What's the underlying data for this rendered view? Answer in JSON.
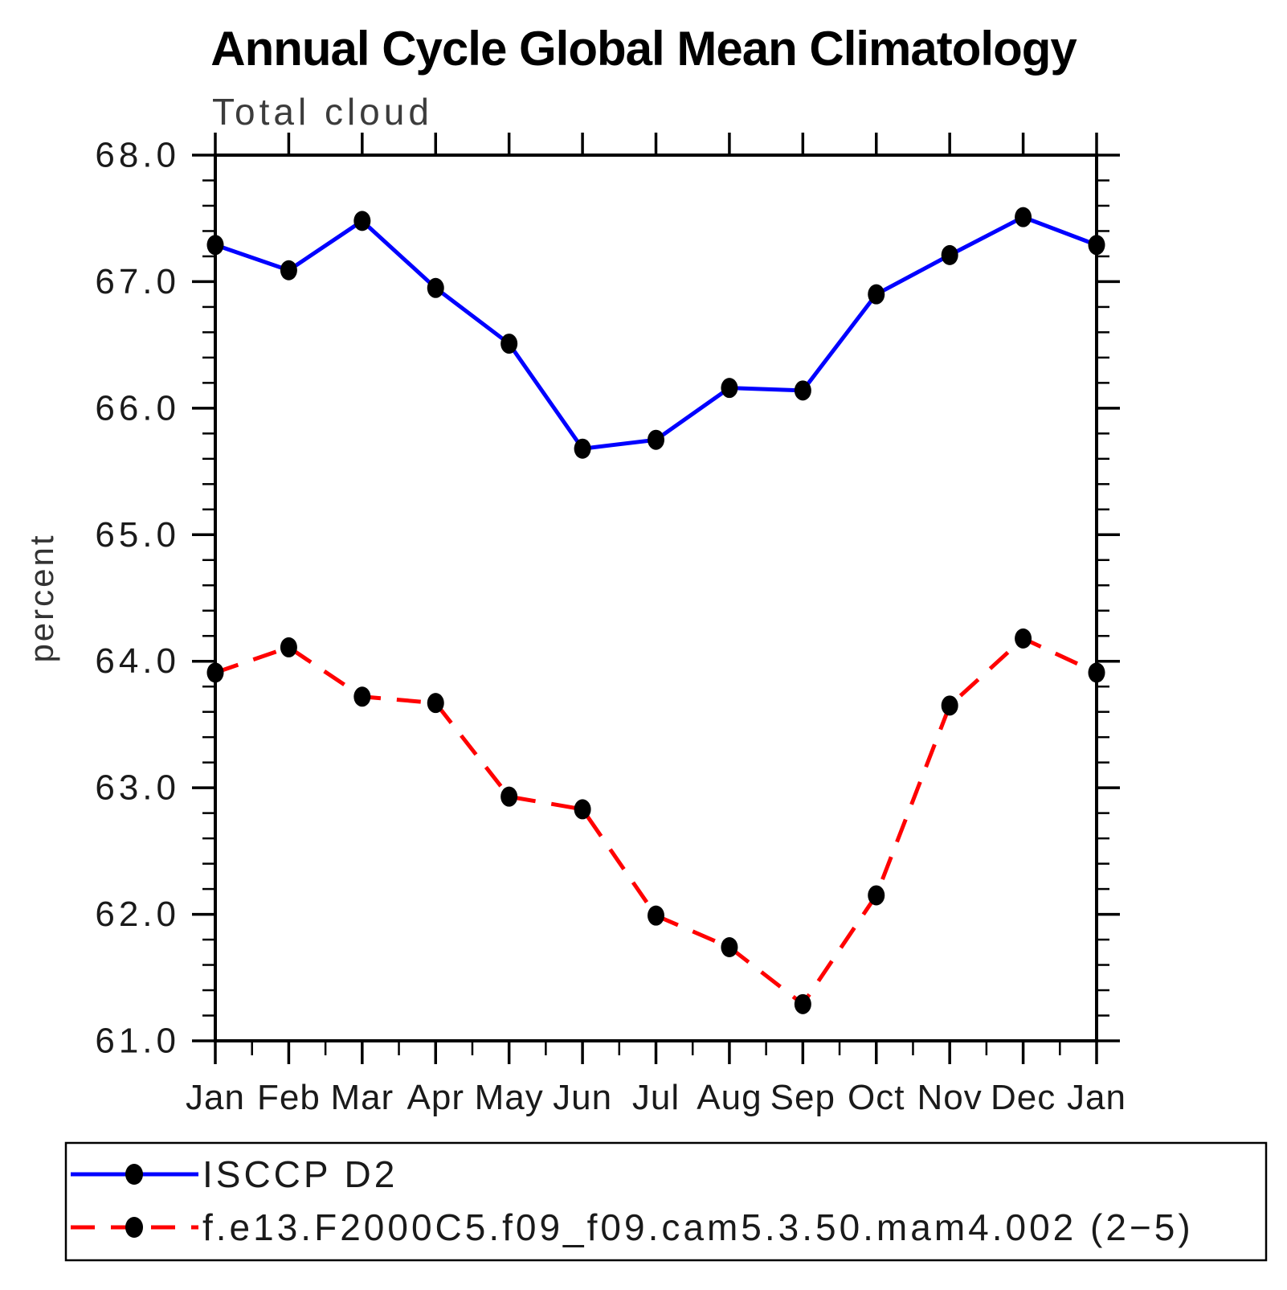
{
  "chart_data": {
    "type": "line",
    "title": "Annual Cycle Global Mean Climatology",
    "subtitle": "Total cloud",
    "xlabel": "",
    "ylabel": "percent",
    "categories": [
      "Jan",
      "Feb",
      "Mar",
      "Apr",
      "May",
      "Jun",
      "Jul",
      "Aug",
      "Sep",
      "Oct",
      "Nov",
      "Dec",
      "Jan"
    ],
    "ylim": [
      61.0,
      68.0
    ],
    "ytick_interval": 1.0,
    "yminor_interval": 0.2,
    "ytick_labels": [
      "61.0",
      "62.0",
      "63.0",
      "64.0",
      "65.0",
      "66.0",
      "67.0",
      "68.0"
    ],
    "grid": false,
    "legend_position": "bottom-box",
    "series": [
      {
        "name": "ISCCP D2",
        "style": "solid",
        "color": "#0000ff",
        "marker": "black-dot",
        "values": [
          67.29,
          67.09,
          67.48,
          66.95,
          66.51,
          65.68,
          65.75,
          66.16,
          66.14,
          66.9,
          67.21,
          67.51,
          67.29
        ]
      },
      {
        "name": "f.e13.F2000C5.f09_f09.cam5.3.50.mam4.002 (2−5)",
        "style": "dashed",
        "color": "#ff0000",
        "marker": "black-dot",
        "values": [
          63.91,
          64.11,
          63.72,
          63.67,
          62.93,
          62.83,
          61.99,
          61.74,
          61.29,
          62.15,
          63.65,
          64.18,
          63.91
        ]
      }
    ]
  },
  "colors": {
    "obs_line": "#0000ff",
    "model_line": "#ff0000",
    "marker": "#000000",
    "axis": "#000000",
    "title_text": "#000000",
    "subtitle_text": "#3c3c3c"
  }
}
